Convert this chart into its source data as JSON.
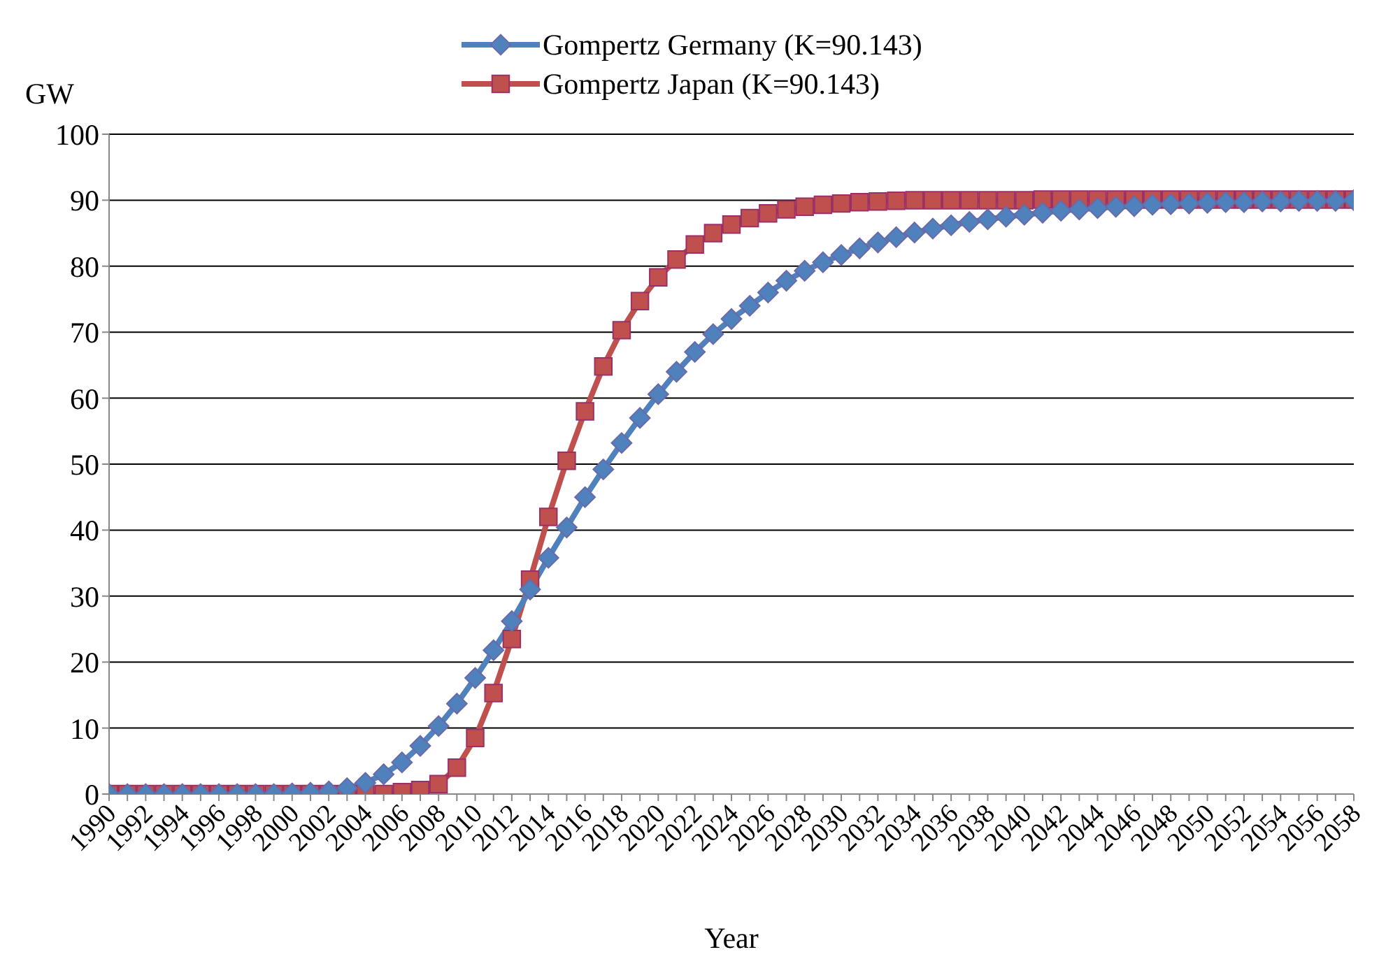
{
  "chart_data": {
    "type": "line",
    "xlabel": "Year",
    "ylabel": "GW",
    "categories": [
      "1990",
      null,
      "1992",
      null,
      "1994",
      null,
      "1996",
      null,
      "1998",
      null,
      "2000",
      null,
      "2002",
      null,
      "2004",
      null,
      "2006",
      null,
      "2008",
      null,
      "2010",
      null,
      "2012",
      null,
      "2014",
      null,
      "2016",
      null,
      "2018",
      null,
      "2020",
      null,
      "2022",
      null,
      "2024",
      null,
      "2026",
      null,
      "2028",
      null,
      "2030",
      null,
      "2032",
      null,
      "2034",
      null,
      "2036",
      null,
      "2038",
      null,
      "2040",
      null,
      "2042",
      null,
      "2044",
      null,
      "2046",
      null,
      "2048",
      null,
      "2050",
      null,
      "2052",
      null,
      "2054",
      null,
      "2056",
      null,
      "2058"
    ],
    "series": [
      {
        "name": "Gompertz Germany (K=90.143)",
        "color": "#4f81bd",
        "marker": "diamond",
        "values": [
          0,
          0,
          0,
          0,
          0,
          0,
          0,
          0,
          0,
          0,
          0.1,
          0.2,
          0.4,
          0.9,
          1.7,
          3,
          4.8,
          7.3,
          10.3,
          13.7,
          17.6,
          21.8,
          26.2,
          31,
          35.8,
          40.4,
          45,
          49.2,
          53.2,
          57,
          60.6,
          64,
          67,
          69.7,
          72,
          74,
          76,
          77.8,
          79.3,
          80.6,
          81.7,
          82.7,
          83.6,
          84.4,
          85.1,
          85.7,
          86.2,
          86.7,
          87.1,
          87.5,
          87.8,
          88.1,
          88.4,
          88.6,
          88.8,
          89,
          89.1,
          89.3,
          89.4,
          89.5,
          89.6,
          89.7,
          89.7,
          89.8,
          89.8,
          89.9,
          89.9,
          89.9,
          90
        ]
      },
      {
        "name": "Gompertz Japan (K=90.143)",
        "color": "#c0504d",
        "marker": "square",
        "values": [
          0,
          0,
          0,
          0,
          0,
          0,
          0,
          0,
          0,
          0,
          0,
          0,
          0,
          0,
          0,
          0,
          0.3,
          0.6,
          1.5,
          4,
          8.5,
          15.3,
          23.5,
          32.5,
          42,
          50.5,
          58,
          64.8,
          70.3,
          74.7,
          78.3,
          81,
          83.3,
          85,
          86.3,
          87.3,
          88,
          88.6,
          89,
          89.3,
          89.5,
          89.7,
          89.8,
          89.9,
          90,
          90,
          90,
          90,
          90,
          90,
          90,
          90.1,
          90.1,
          90.1,
          90.1,
          90.1,
          90.1,
          90.1,
          90.1,
          90.1,
          90.1,
          90.1,
          90.1,
          90.1,
          90.1,
          90.1,
          90.1,
          90.1,
          90.1
        ]
      }
    ],
    "ylim": [
      0,
      100
    ],
    "yticks": [
      0,
      10,
      20,
      30,
      40,
      50,
      60,
      70,
      80,
      90,
      100
    ],
    "grid": "y",
    "legend": "top",
    "line_style": "solid"
  }
}
